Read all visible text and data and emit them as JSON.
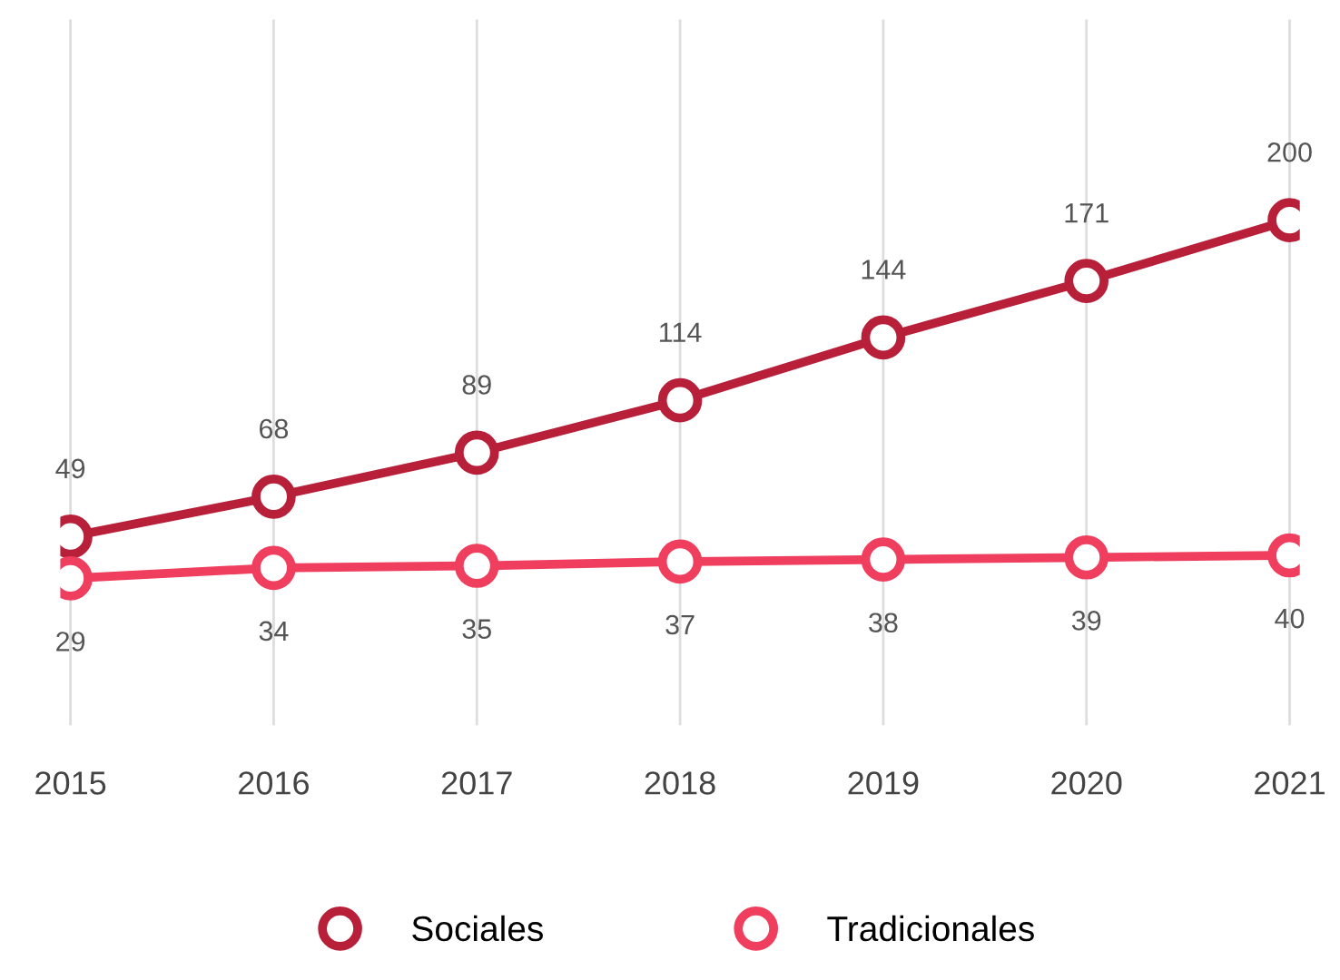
{
  "chart_data": {
    "type": "line",
    "categories": [
      "2015",
      "2016",
      "2017",
      "2018",
      "2019",
      "2020",
      "2021"
    ],
    "series": [
      {
        "name": "Sociales",
        "color": "#b8203a",
        "values": [
          49,
          68,
          89,
          114,
          144,
          171,
          200
        ]
      },
      {
        "name": "Tradicionales",
        "color": "#ef3e5e",
        "values": [
          29,
          34,
          35,
          37,
          38,
          39,
          40
        ]
      }
    ],
    "data_labels": true,
    "grid": "x",
    "legend": "bottom",
    "marker": "circle",
    "line_style": "solid",
    "tick_labels": "x"
  }
}
